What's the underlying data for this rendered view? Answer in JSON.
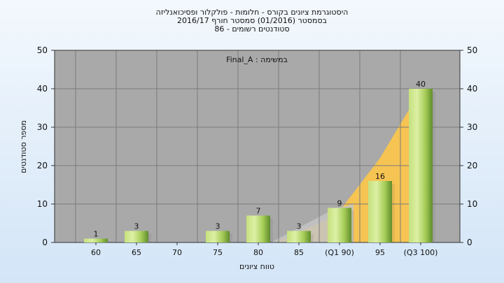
{
  "chart_data": {
    "type": "bar",
    "title_lines": [
      "היסטוגרמת ציונים בקורס - חלומות - פולקלור ופסיכואנליזה",
      "בסמסטר  (01/2016)  סמסטר חורף 2016/17",
      "סטודנטים רשומים - 86"
    ],
    "legend_label": "במשימה : Final_A",
    "xlabel": "טווח ציונים",
    "ylabel": "מספר סטודנטים",
    "ylim": [
      0,
      50
    ],
    "yticks": [
      0,
      10,
      20,
      30,
      40,
      50
    ],
    "categories": [
      "60",
      "65",
      "70",
      "75",
      "80",
      "85",
      "(Q1 90)",
      "95",
      "(Q3 100)"
    ],
    "values": [
      1,
      3,
      0,
      3,
      7,
      3,
      9,
      16,
      40
    ],
    "value_labels": [
      "1",
      "3",
      "",
      "3",
      "7",
      "3",
      "9",
      "16",
      "40"
    ],
    "grid": true,
    "colors": {
      "plot_bg": "#a9a9a9",
      "bar_light": "#d9ef9e",
      "bar_mid": "#a8cf5a",
      "bar_dark": "#5d8a2a",
      "area_orange": "#f6c453",
      "area_gray": "#c4c4c4",
      "grid": "#7a7a7a"
    }
  }
}
